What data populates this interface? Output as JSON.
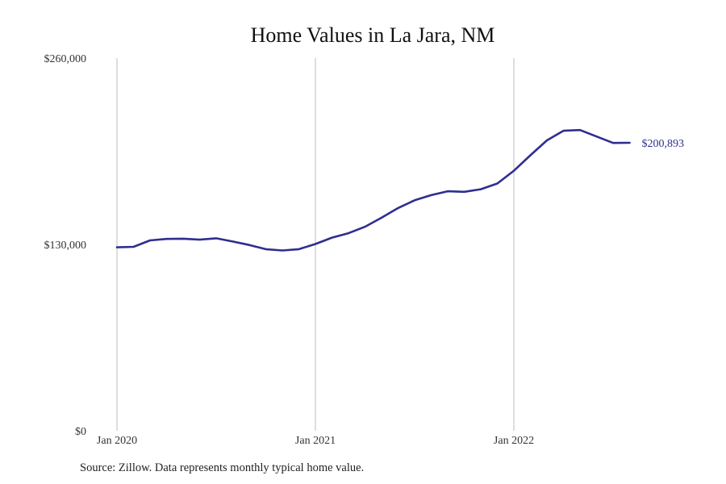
{
  "chart_data": {
    "type": "line",
    "title": "Home Values in La Jara, NM",
    "xlabel": "",
    "ylabel": "",
    "ylim": [
      0,
      260000
    ],
    "y_ticks": [
      {
        "value": 0,
        "label": "$0"
      },
      {
        "value": 130000,
        "label": "$130,000"
      },
      {
        "value": 260000,
        "label": "$260,000"
      }
    ],
    "x_ticks": [
      {
        "date": "2020-01",
        "label": "Jan 2020"
      },
      {
        "date": "2021-01",
        "label": "Jan 2021"
      },
      {
        "date": "2022-01",
        "label": "Jan 2022"
      }
    ],
    "grid": {
      "vertical": true,
      "horizontal": false
    },
    "series": [
      {
        "color": "#2e2e8f",
        "points": [
          {
            "x": "2020-01",
            "y": 128000
          },
          {
            "x": "2020-02",
            "y": 128300
          },
          {
            "x": "2020-03",
            "y": 132800
          },
          {
            "x": "2020-04",
            "y": 133800
          },
          {
            "x": "2020-05",
            "y": 134000
          },
          {
            "x": "2020-06",
            "y": 133300
          },
          {
            "x": "2020-07",
            "y": 134300
          },
          {
            "x": "2020-08",
            "y": 132000
          },
          {
            "x": "2020-09",
            "y": 129600
          },
          {
            "x": "2020-10",
            "y": 126700
          },
          {
            "x": "2020-11",
            "y": 125800
          },
          {
            "x": "2020-12",
            "y": 126700
          },
          {
            "x": "2021-01",
            "y": 130300
          },
          {
            "x": "2021-02",
            "y": 134700
          },
          {
            "x": "2021-03",
            "y": 137800
          },
          {
            "x": "2021-04",
            "y": 142300
          },
          {
            "x": "2021-05",
            "y": 148600
          },
          {
            "x": "2021-06",
            "y": 155400
          },
          {
            "x": "2021-07",
            "y": 160800
          },
          {
            "x": "2021-08",
            "y": 164400
          },
          {
            "x": "2021-09",
            "y": 167100
          },
          {
            "x": "2021-10",
            "y": 166700
          },
          {
            "x": "2021-11",
            "y": 168500
          },
          {
            "x": "2021-12",
            "y": 172500
          },
          {
            "x": "2022-01",
            "y": 181400
          },
          {
            "x": "2022-02",
            "y": 192200
          },
          {
            "x": "2022-03",
            "y": 202600
          },
          {
            "x": "2022-04",
            "y": 209300
          },
          {
            "x": "2022-05",
            "y": 209800
          },
          {
            "x": "2022-06",
            "y": 205300
          },
          {
            "x": "2022-07",
            "y": 200800
          },
          {
            "x": "2022-08",
            "y": 200893
          }
        ],
        "end_label": "$200,893"
      }
    ]
  },
  "source_note": "Source: Zillow. Data represents monthly typical home value."
}
